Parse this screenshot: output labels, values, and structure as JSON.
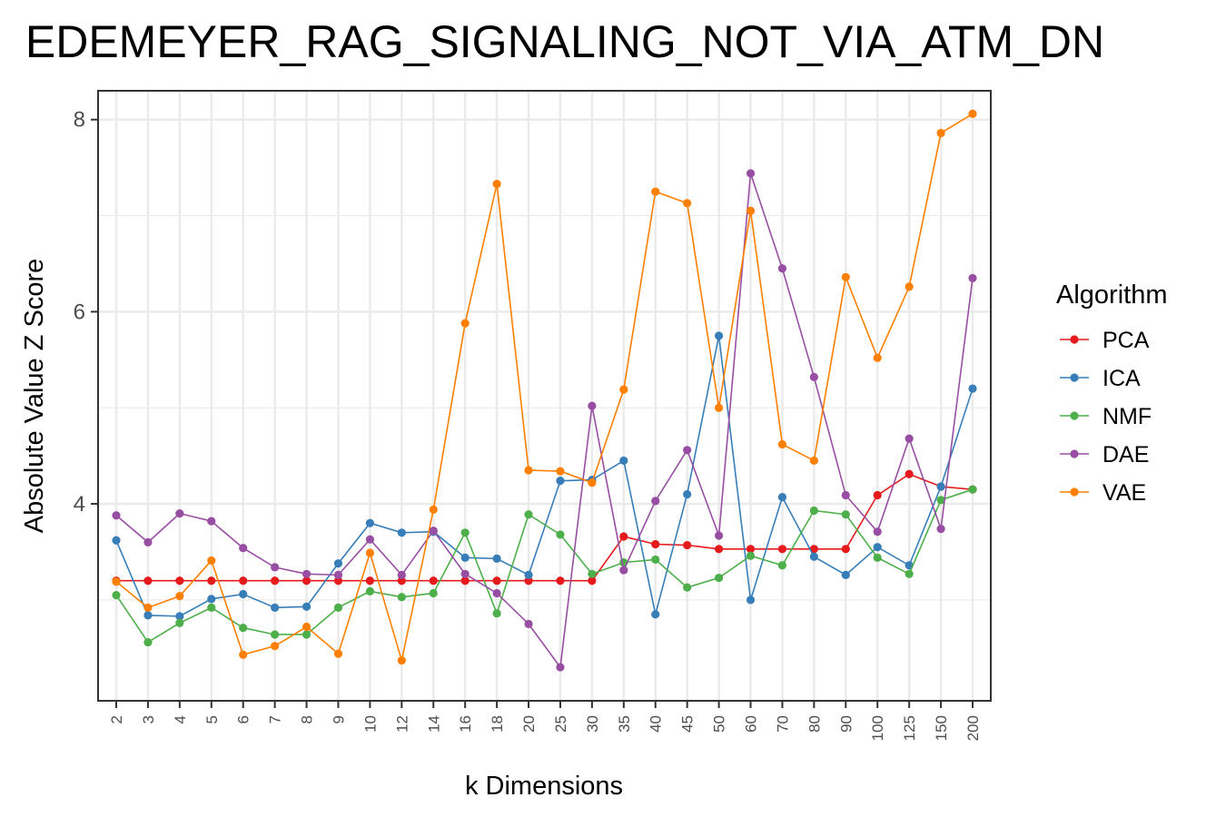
{
  "chart_data": {
    "type": "line",
    "title": "EDEMEYER_RAG_SIGNALING_NOT_VIA_ATM_DN",
    "xlabel": "k Dimensions",
    "ylabel": "Absolute Value Z Score",
    "categories": [
      "2",
      "3",
      "4",
      "5",
      "6",
      "7",
      "8",
      "9",
      "10",
      "12",
      "14",
      "16",
      "18",
      "20",
      "25",
      "30",
      "35",
      "40",
      "45",
      "50",
      "60",
      "70",
      "80",
      "90",
      "100",
      "125",
      "150",
      "200"
    ],
    "ylim": [
      1.95,
      8.3
    ],
    "yticks": [
      4,
      6,
      8
    ],
    "grid": true,
    "legend": {
      "title": "Algorithm",
      "position": "right"
    },
    "series": [
      {
        "name": "PCA",
        "color": "#e41a1c",
        "values": [
          3.2,
          3.2,
          3.2,
          3.2,
          3.2,
          3.2,
          3.2,
          3.2,
          3.2,
          3.2,
          3.2,
          3.2,
          3.2,
          3.2,
          3.2,
          3.2,
          3.66,
          3.58,
          3.57,
          3.53,
          3.53,
          3.53,
          3.53,
          3.53,
          4.09,
          4.31,
          4.18,
          4.15
        ]
      },
      {
        "name": "ICA",
        "color": "#377eb8",
        "values": [
          3.62,
          2.84,
          2.83,
          3.01,
          3.06,
          2.92,
          2.93,
          3.38,
          3.8,
          3.7,
          3.71,
          3.44,
          3.43,
          3.26,
          4.24,
          4.25,
          4.45,
          2.85,
          4.1,
          5.75,
          3.0,
          4.07,
          3.45,
          3.26,
          3.55,
          3.36,
          4.18,
          5.2
        ]
      },
      {
        "name": "NMF",
        "color": "#4daf4a",
        "values": [
          3.05,
          2.56,
          2.76,
          2.92,
          2.71,
          2.64,
          2.64,
          2.92,
          3.09,
          3.03,
          3.07,
          3.7,
          2.86,
          3.89,
          3.68,
          3.27,
          3.39,
          3.42,
          3.13,
          3.23,
          3.46,
          3.36,
          3.93,
          3.89,
          3.44,
          3.27,
          4.04,
          4.15
        ]
      },
      {
        "name": "DAE",
        "color": "#984ea3",
        "values": [
          3.88,
          3.6,
          3.9,
          3.82,
          3.54,
          3.34,
          3.27,
          3.26,
          3.63,
          3.26,
          3.72,
          3.27,
          3.07,
          2.75,
          2.3,
          5.02,
          3.31,
          4.03,
          4.56,
          3.67,
          7.44,
          6.45,
          5.32,
          4.09,
          3.71,
          4.68,
          3.74,
          6.35
        ]
      },
      {
        "name": "VAE",
        "color": "#ff7f00",
        "values": [
          3.19,
          2.92,
          3.04,
          3.41,
          2.43,
          2.52,
          2.72,
          2.44,
          3.49,
          2.37,
          3.94,
          5.88,
          7.33,
          4.35,
          4.34,
          4.22,
          5.19,
          7.25,
          7.13,
          5.0,
          7.05,
          4.62,
          4.45,
          6.36,
          5.52,
          6.26,
          7.86,
          8.06
        ]
      }
    ]
  }
}
